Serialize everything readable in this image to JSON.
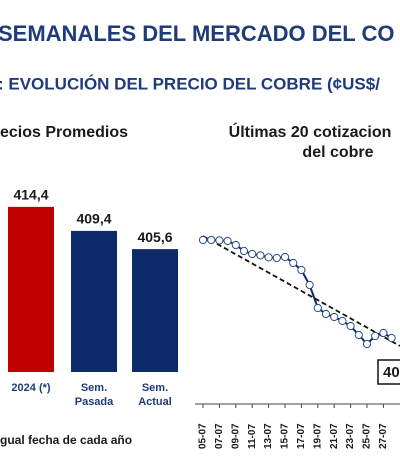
{
  "header": {
    "title": "SEMANALES DEL MERCADO DEL CO",
    "subtitle": ": EVOLUCIÓN DEL PRECIO DEL COBRE (¢US$/"
  },
  "chart_data": [
    {
      "type": "bar",
      "title": "ecios Promedios",
      "categories": [
        "2024 (*)",
        "Sem. Pasada",
        "Sem. Actual"
      ],
      "values": [
        414.4,
        409.4,
        405.6
      ],
      "value_labels": [
        "414,4",
        "409,4",
        "405,6"
      ],
      "colors": [
        "#c00000",
        "#0d2a6b",
        "#0d2a6b"
      ],
      "ylim": [
        380,
        420
      ],
      "note": "gual fecha de cada año"
    },
    {
      "type": "line",
      "title": [
        "Últimas 20 cotizacion",
        "del cobre"
      ],
      "categories": [
        "05-07",
        null,
        "07-07",
        null,
        "09-07",
        null,
        "11-07",
        null,
        "13-07",
        null,
        "15-07",
        null,
        "17-07",
        null,
        "19-07",
        null,
        "21-07",
        null,
        "23-07",
        null,
        "25-07",
        null,
        "27-07",
        null
      ],
      "values": [
        463,
        463,
        462.8,
        462.5,
        460.5,
        457.5,
        456,
        455.3,
        454.3,
        454,
        454.5,
        451.5,
        448,
        440.5,
        429,
        426,
        424.5,
        422.5,
        420,
        415.5,
        411,
        415,
        416.5,
        414
      ],
      "color": "#0d2a6b",
      "ylim": [
        383,
        488
      ],
      "annotation": "40"
    }
  ]
}
